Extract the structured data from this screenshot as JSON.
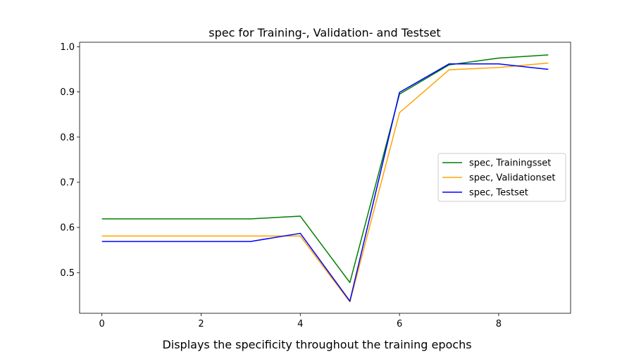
{
  "chart_data": {
    "type": "line",
    "title": "spec for Training-, Validation- and Testset",
    "caption": "Displays the specificity throughout the training epochs",
    "xlabel": "",
    "ylabel": "",
    "xlim": [
      -0.45,
      9.45
    ],
    "ylim": [
      0.41,
      1.01
    ],
    "x": [
      0,
      1,
      2,
      3,
      4,
      5,
      6,
      7,
      8,
      9
    ],
    "xticks": [
      0,
      2,
      4,
      6,
      8
    ],
    "yticks": [
      0.5,
      0.6,
      0.7,
      0.8,
      0.9,
      1.0
    ],
    "xtick_labels": [
      "0",
      "2",
      "4",
      "6",
      "8"
    ],
    "ytick_labels": [
      "0.5",
      "0.6",
      "0.7",
      "0.8",
      "0.9",
      "1.0"
    ],
    "legend_position": "center-right",
    "grid": false,
    "series": [
      {
        "name": "spec, Trainingsset",
        "color": "#008000",
        "values": [
          0.619,
          0.619,
          0.619,
          0.619,
          0.625,
          0.478,
          0.895,
          0.96,
          0.975,
          0.982
        ]
      },
      {
        "name": "spec, Validationset",
        "color": "#ffa500",
        "values": [
          0.581,
          0.581,
          0.581,
          0.581,
          0.581,
          0.435,
          0.854,
          0.949,
          0.954,
          0.964
        ]
      },
      {
        "name": "spec, Testset",
        "color": "#0000ff",
        "values": [
          0.569,
          0.569,
          0.569,
          0.569,
          0.587,
          0.437,
          0.899,
          0.962,
          0.962,
          0.95
        ]
      }
    ]
  }
}
